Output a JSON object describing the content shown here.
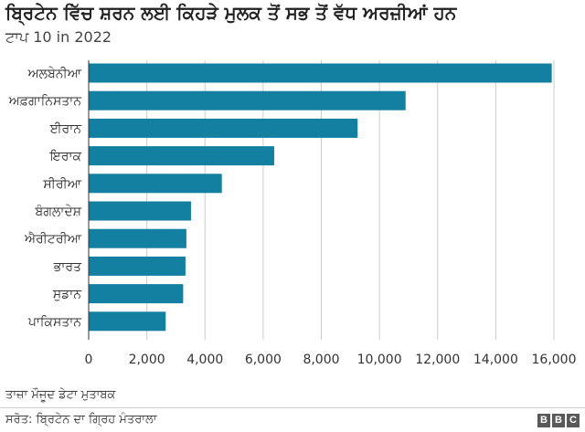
{
  "title": "ਬ੍ਰਿਟੇਨ ਵਿੱਚ ਸ਼ਰਨ ਲਈ ਕਿਹੜੇ ਮੁਲਕ ਤੋਂ ਸਭ ਤੋਂ ਵੱਧ ਅਰਜ਼ੀਆਂ ਹਨ",
  "subtitle": "ਟਾਪ 10 in 2022",
  "note": "ਤਾਜ਼ਾ ਮੌਜੂਦ ਡੇਟਾ ਮੁਤਾਬਕ",
  "source": "ਸਰੋਤ: ਬ੍ਰਿਟੇਨ ਦਾ ਗ੍ਰਿਹ ਮੰਤਰਾਲਾ",
  "logo_letters": [
    "B",
    "B",
    "C"
  ],
  "colors": {
    "bar": "#1380a1",
    "grid": "#cccccc",
    "axis": "#333333"
  },
  "chart_data": {
    "type": "bar",
    "orientation": "horizontal",
    "categories": [
      "ਅਲਬੇਨੀਆ",
      "ਅਫ਼ਗਾਨਿਸਤਾਨ",
      "ਈਰਾਨ",
      "ਇਰਾਕ",
      "ਸੀਰੀਆ",
      "ਬੰਗਲਾਦੇਸ਼",
      "ਐਰੀਟਰੀਆ",
      "ਭਾਰਤ",
      "ਸੁਡਾਨ",
      "ਪਾਕਿਸਤਾਨ"
    ],
    "values": [
      15925,
      10900,
      9250,
      6380,
      4580,
      3520,
      3360,
      3330,
      3250,
      2650
    ],
    "xlim": [
      0,
      16000
    ],
    "xticks": [
      0,
      2000,
      4000,
      6000,
      8000,
      10000,
      12000,
      14000,
      16000
    ],
    "xtick_labels": [
      "0",
      "2,000",
      "4,000",
      "6,000",
      "8,000",
      "10,000",
      "12,000",
      "14,000",
      "16,000"
    ],
    "grid": true
  }
}
